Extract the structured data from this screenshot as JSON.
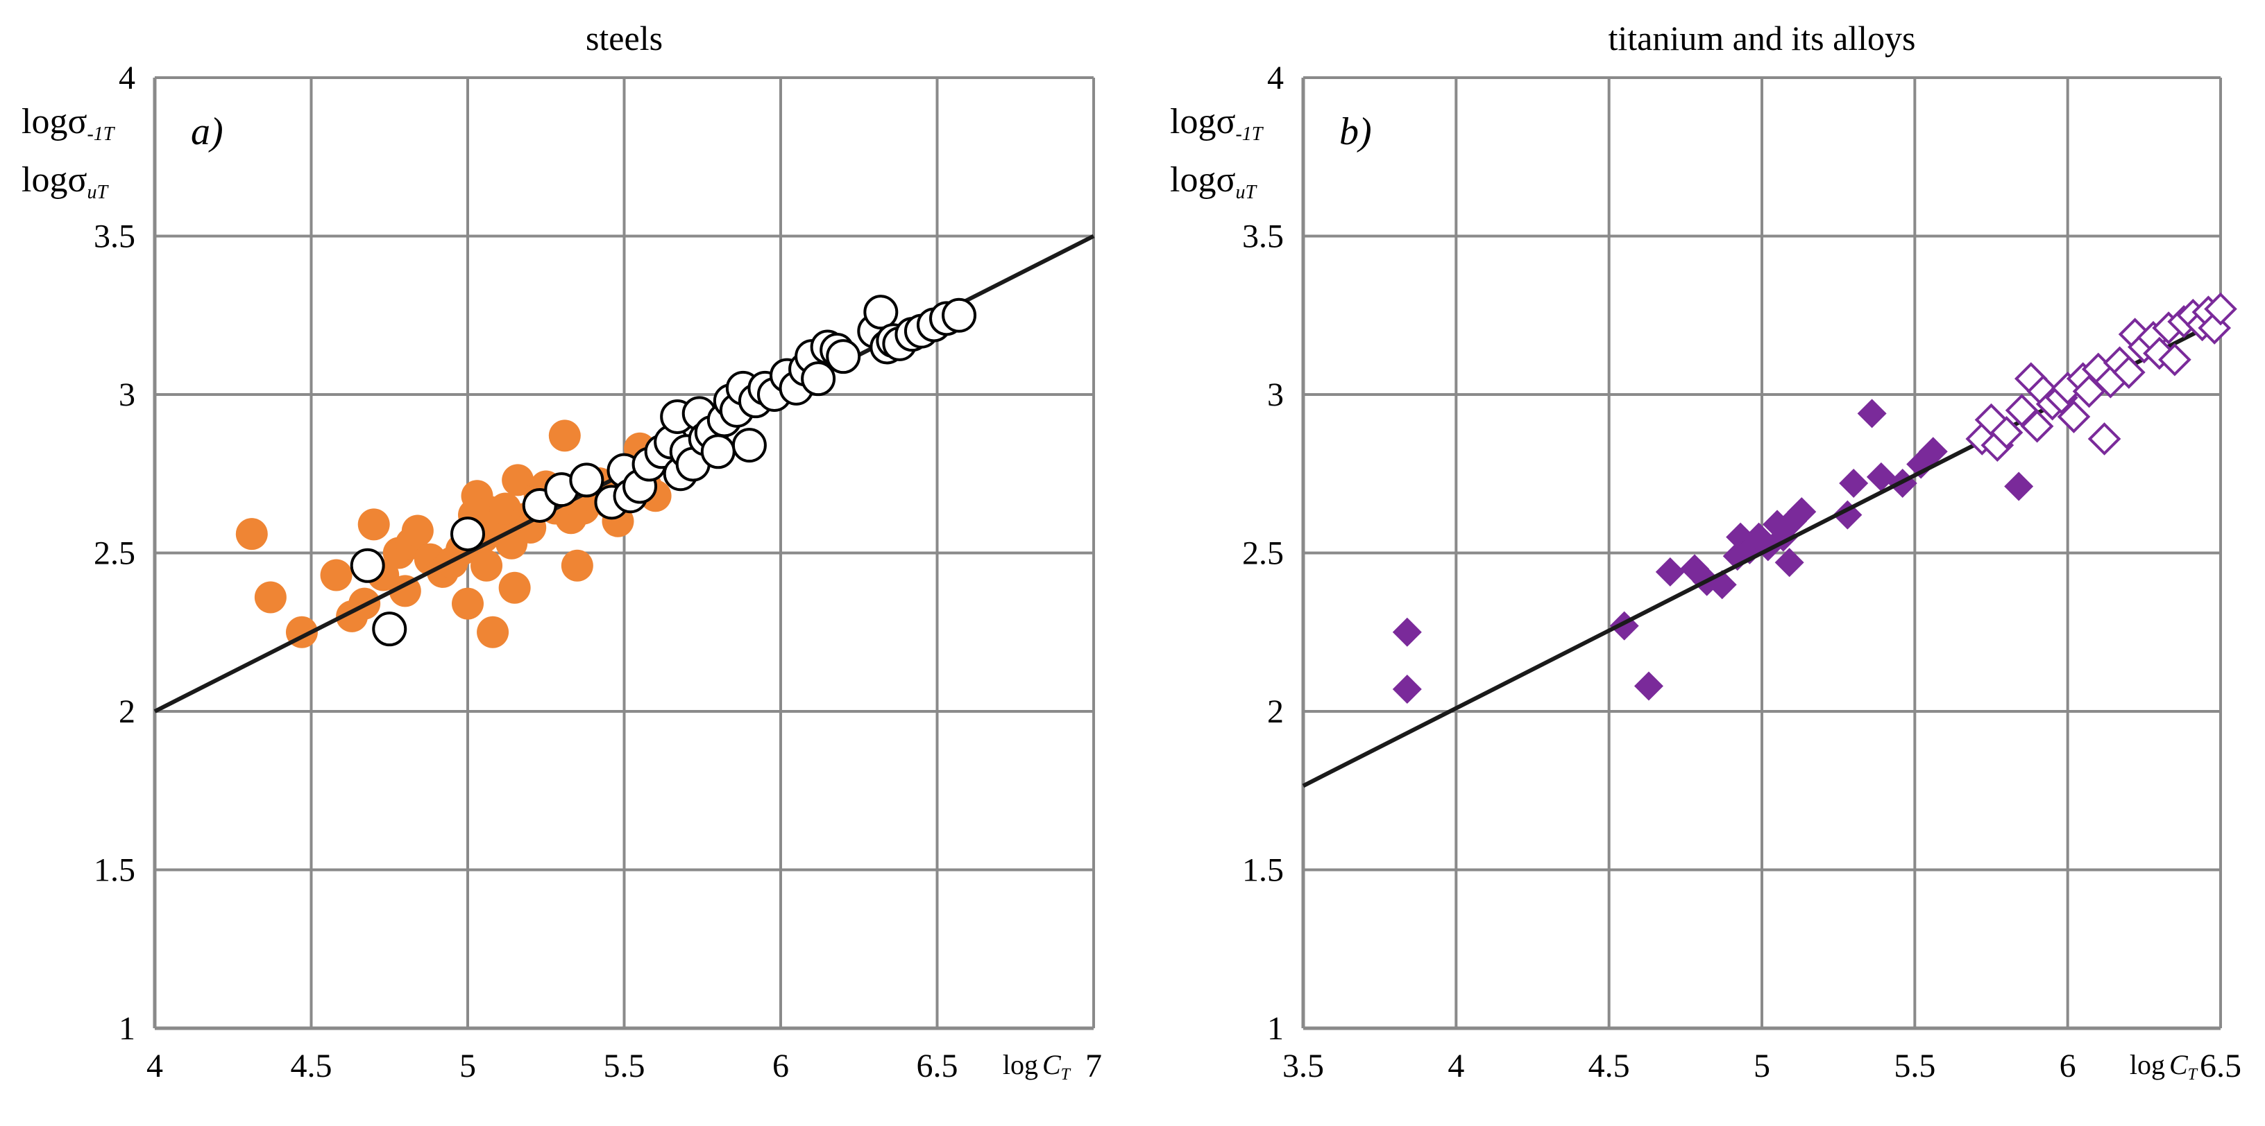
{
  "chart_data": [
    {
      "type": "scatter",
      "panel": "a",
      "title": "steels",
      "panel_label": "a)",
      "xlabel": {
        "base": "log",
        "sym": "C",
        "sub": "T"
      },
      "ylabel_1": {
        "base": "logσ",
        "sub": "-1T"
      },
      "ylabel_2": {
        "base": "logσ",
        "sub": "uT"
      },
      "xlim": [
        4,
        7
      ],
      "ylim": [
        1,
        4
      ],
      "xticks": [
        "4",
        "4.5",
        "5",
        "5.5",
        "6",
        "6.5",
        "7"
      ],
      "yticks": [
        "1",
        "1.5",
        "2",
        "2.5",
        "3",
        "3.5",
        "4"
      ],
      "grid": true,
      "trend_line": {
        "x": [
          4,
          7
        ],
        "y": [
          2.0,
          3.5
        ],
        "color": "#1a1a1a"
      },
      "series": [
        {
          "name": "filled",
          "marker": "circle",
          "fill": "#ef8534",
          "stroke": "none",
          "points": [
            [
              4.31,
              2.56
            ],
            [
              4.37,
              2.36
            ],
            [
              4.47,
              2.25
            ],
            [
              4.58,
              2.43
            ],
            [
              4.63,
              2.3
            ],
            [
              4.67,
              2.34
            ],
            [
              4.7,
              2.59
            ],
            [
              4.73,
              2.43
            ],
            [
              4.78,
              2.5
            ],
            [
              4.8,
              2.38
            ],
            [
              4.82,
              2.53
            ],
            [
              4.84,
              2.57
            ],
            [
              4.88,
              2.48
            ],
            [
              4.92,
              2.44
            ],
            [
              4.95,
              2.47
            ],
            [
              4.98,
              2.51
            ],
            [
              5.0,
              2.34
            ],
            [
              5.02,
              2.62
            ],
            [
              5.03,
              2.68
            ],
            [
              5.05,
              2.55
            ],
            [
              5.07,
              2.63
            ],
            [
              5.08,
              2.25
            ],
            [
              5.1,
              2.59
            ],
            [
              5.12,
              2.64
            ],
            [
              5.14,
              2.53
            ],
            [
              5.15,
              2.39
            ],
            [
              5.16,
              2.73
            ],
            [
              5.19,
              2.61
            ],
            [
              5.2,
              2.58
            ],
            [
              5.23,
              2.68
            ],
            [
              5.25,
              2.71
            ],
            [
              5.28,
              2.64
            ],
            [
              5.31,
              2.87
            ],
            [
              5.33,
              2.61
            ],
            [
              5.35,
              2.46
            ],
            [
              5.37,
              2.64
            ],
            [
              5.4,
              2.68
            ],
            [
              5.42,
              2.72
            ],
            [
              5.45,
              2.66
            ],
            [
              5.48,
              2.6
            ],
            [
              5.5,
              2.72
            ],
            [
              5.53,
              2.74
            ],
            [
              5.55,
              2.83
            ],
            [
              5.57,
              2.71
            ],
            [
              5.6,
              2.68
            ],
            [
              5.64,
              2.8
            ],
            [
              5.4,
              2.71
            ],
            [
              5.06,
              2.46
            ]
          ]
        },
        {
          "name": "open",
          "marker": "circle",
          "fill": "#ffffff",
          "stroke": "#000000",
          "points": [
            [
              4.68,
              2.46
            ],
            [
              4.75,
              2.26
            ],
            [
              5.0,
              2.56
            ],
            [
              5.23,
              2.65
            ],
            [
              5.3,
              2.7
            ],
            [
              5.38,
              2.73
            ],
            [
              5.46,
              2.66
            ],
            [
              5.5,
              2.76
            ],
            [
              5.52,
              2.68
            ],
            [
              5.55,
              2.71
            ],
            [
              5.58,
              2.78
            ],
            [
              5.62,
              2.82
            ],
            [
              5.65,
              2.85
            ],
            [
              5.67,
              2.93
            ],
            [
              5.68,
              2.75
            ],
            [
              5.7,
              2.82
            ],
            [
              5.72,
              2.78
            ],
            [
              5.74,
              2.94
            ],
            [
              5.76,
              2.86
            ],
            [
              5.78,
              2.88
            ],
            [
              5.8,
              2.82
            ],
            [
              5.82,
              2.92
            ],
            [
              5.84,
              2.98
            ],
            [
              5.86,
              2.95
            ],
            [
              5.88,
              3.02
            ],
            [
              5.9,
              2.84
            ],
            [
              5.92,
              2.98
            ],
            [
              5.95,
              3.02
            ],
            [
              5.98,
              3.0
            ],
            [
              6.02,
              3.06
            ],
            [
              6.05,
              3.02
            ],
            [
              6.08,
              3.08
            ],
            [
              6.1,
              3.12
            ],
            [
              6.12,
              3.05
            ],
            [
              6.15,
              3.15
            ],
            [
              6.18,
              3.14
            ],
            [
              6.2,
              3.12
            ],
            [
              6.3,
              3.2
            ],
            [
              6.32,
              3.26
            ],
            [
              6.34,
              3.15
            ],
            [
              6.36,
              3.17
            ],
            [
              6.38,
              3.16
            ],
            [
              6.42,
              3.19
            ],
            [
              6.45,
              3.2
            ],
            [
              6.49,
              3.22
            ],
            [
              6.53,
              3.24
            ],
            [
              6.57,
              3.25
            ]
          ]
        }
      ]
    },
    {
      "type": "scatter",
      "panel": "b",
      "title": "titanium and its alloys",
      "panel_label": "b)",
      "xlabel": {
        "base": "log",
        "sym": "C",
        "sub": "T"
      },
      "ylabel_1": {
        "base": "logσ",
        "sub": "-1T"
      },
      "ylabel_2": {
        "base": "logσ",
        "sub": "uT"
      },
      "xlim": [
        3.5,
        6.5
      ],
      "ylim": [
        1,
        4
      ],
      "xticks": [
        "3.5",
        "4",
        "4.5",
        "5",
        "5.5",
        "6",
        "6.5"
      ],
      "yticks": [
        "1",
        "1.5",
        "2",
        "2.5",
        "3",
        "3.5",
        "4"
      ],
      "grid": true,
      "trend_line": {
        "x": [
          3.5,
          6.5
        ],
        "y": [
          1.765,
          3.235
        ],
        "color": "#1a1a1a"
      },
      "series": [
        {
          "name": "filled",
          "marker": "diamond",
          "fill": "#7a2a9a",
          "stroke": "none",
          "points": [
            [
              3.84,
              2.25
            ],
            [
              3.84,
              2.07
            ],
            [
              4.55,
              2.27
            ],
            [
              4.63,
              2.08
            ],
            [
              4.7,
              2.44
            ],
            [
              4.78,
              2.45
            ],
            [
              4.82,
              2.41
            ],
            [
              4.87,
              2.4
            ],
            [
              4.92,
              2.49
            ],
            [
              4.93,
              2.55
            ],
            [
              4.96,
              2.51
            ],
            [
              4.99,
              2.55
            ],
            [
              5.02,
              2.52
            ],
            [
              5.05,
              2.59
            ],
            [
              5.07,
              2.55
            ],
            [
              5.09,
              2.47
            ],
            [
              5.1,
              2.6
            ],
            [
              5.13,
              2.63
            ],
            [
              5.28,
              2.62
            ],
            [
              5.3,
              2.72
            ],
            [
              5.36,
              2.94
            ],
            [
              5.39,
              2.74
            ],
            [
              5.46,
              2.72
            ],
            [
              5.52,
              2.78
            ],
            [
              5.56,
              2.82
            ],
            [
              5.84,
              2.71
            ]
          ]
        },
        {
          "name": "open",
          "marker": "diamond",
          "fill": "#ffffff",
          "stroke": "#7a2a9a",
          "points": [
            [
              5.72,
              2.86
            ],
            [
              5.75,
              2.92
            ],
            [
              5.77,
              2.84
            ],
            [
              5.8,
              2.88
            ],
            [
              5.85,
              2.95
            ],
            [
              5.88,
              3.05
            ],
            [
              5.9,
              2.9
            ],
            [
              5.92,
              3.01
            ],
            [
              5.95,
              2.97
            ],
            [
              5.98,
              2.99
            ],
            [
              6.0,
              3.02
            ],
            [
              6.02,
              2.93
            ],
            [
              6.05,
              3.05
            ],
            [
              6.07,
              3.01
            ],
            [
              6.1,
              3.08
            ],
            [
              6.12,
              2.86
            ],
            [
              6.14,
              3.04
            ],
            [
              6.17,
              3.1
            ],
            [
              6.2,
              3.07
            ],
            [
              6.22,
              3.19
            ],
            [
              6.25,
              3.15
            ],
            [
              6.28,
              3.18
            ],
            [
              6.3,
              3.13
            ],
            [
              6.33,
              3.21
            ],
            [
              6.35,
              3.11
            ],
            [
              6.38,
              3.23
            ],
            [
              6.41,
              3.25
            ],
            [
              6.44,
              3.22
            ],
            [
              6.46,
              3.26
            ],
            [
              6.48,
              3.21
            ],
            [
              6.5,
              3.27
            ]
          ]
        }
      ]
    }
  ]
}
